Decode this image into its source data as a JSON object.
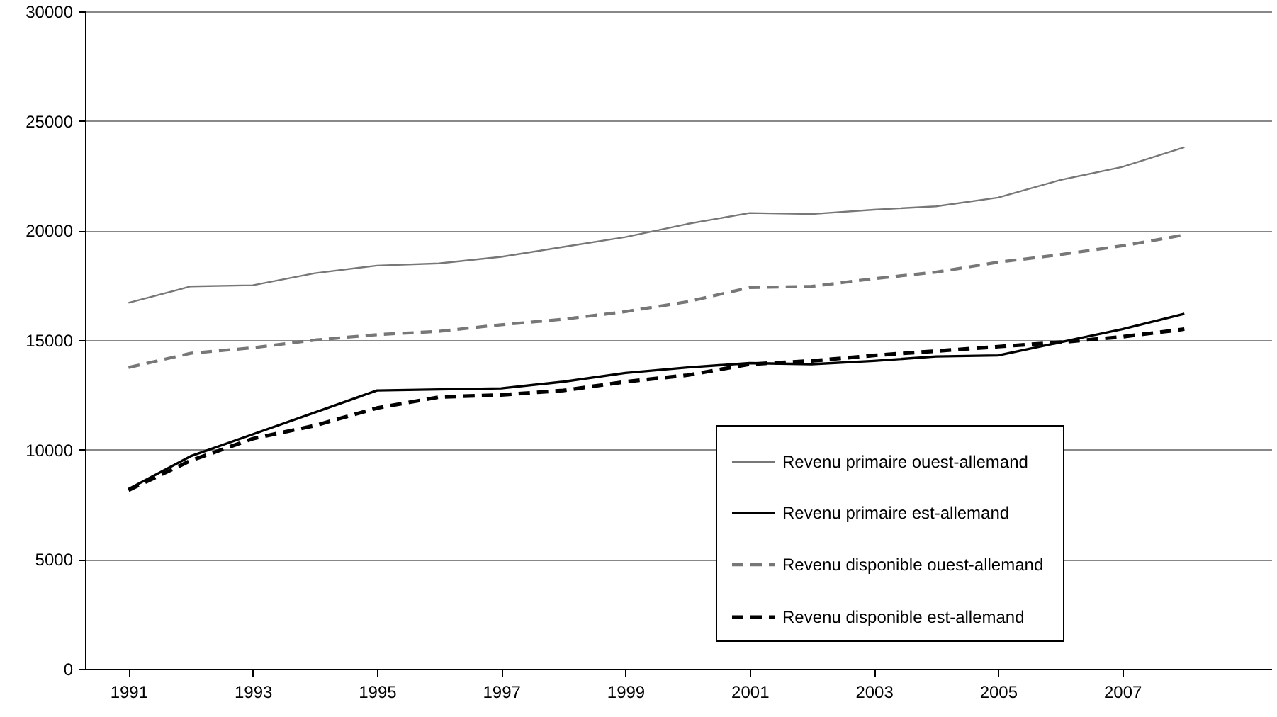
{
  "chart_data": {
    "type": "line",
    "x": [
      1991,
      1992,
      1993,
      1994,
      1995,
      1996,
      1997,
      1998,
      1999,
      2000,
      2001,
      2002,
      2003,
      2004,
      2005,
      2006,
      2007,
      2008
    ],
    "xlim": [
      1990.3,
      2009.4
    ],
    "xticks": [
      1991,
      1993,
      1995,
      1997,
      1999,
      2001,
      2003,
      2005,
      2007
    ],
    "ylim": [
      0,
      30000
    ],
    "yticks": [
      0,
      5000,
      10000,
      15000,
      20000,
      25000,
      30000
    ],
    "grid": "y",
    "legend": "bottom right",
    "marker": "none",
    "series": [
      {
        "name": "Revenu primaire  ouest-allemand",
        "color": "#777777",
        "line_style": "solid",
        "values": [
          16700,
          17450,
          17500,
          18050,
          18400,
          18500,
          18800,
          19250,
          19700,
          20300,
          20800,
          20750,
          20950,
          21100,
          21500,
          22300,
          22900,
          23800
        ]
      },
      {
        "name": "Revenu primaire  est-allemand",
        "color": "#000000",
        "line_style": "solid",
        "values": [
          8200,
          9700,
          10700,
          11700,
          12700,
          12750,
          12800,
          13100,
          13500,
          13750,
          13950,
          13900,
          14050,
          14250,
          14300,
          14900,
          15500,
          16200
        ]
      },
      {
        "name": "Revenu disponible  ouest-allemand",
        "color": "#777777",
        "line_style": "dashed",
        "values": [
          13750,
          14400,
          14650,
          15000,
          15250,
          15400,
          15700,
          15950,
          16300,
          16750,
          17400,
          17450,
          17800,
          18100,
          18550,
          18900,
          19300,
          19800
        ]
      },
      {
        "name": "Revenu disponible  est-allemand",
        "color": "#000000",
        "line_style": "dashed",
        "values": [
          8150,
          9500,
          10500,
          11100,
          11900,
          12400,
          12500,
          12700,
          13100,
          13400,
          13900,
          14050,
          14300,
          14500,
          14700,
          14900,
          15150,
          15500
        ]
      }
    ]
  }
}
